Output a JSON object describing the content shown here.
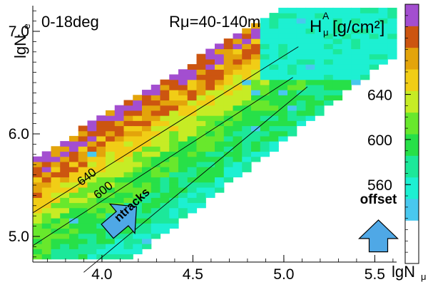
{
  "chart_data": {
    "type": "heatmap",
    "title_left": "0-18deg",
    "title_mid": "Rμ=40-140m",
    "colorbar_title": "H",
    "colorbar_title_sup": "A",
    "colorbar_title_sub": "μ",
    "colorbar_unit": "[g/cm²]",
    "xlabel": "lgN",
    "xlabel_sub": "μ",
    "ylabel": "lgN",
    "ylabel_sub": "e",
    "xlim": [
      3.62,
      5.62
    ],
    "ylim": [
      4.75,
      7.25
    ],
    "x_ticks": [
      {
        "value": 4.0,
        "label": "4.0"
      },
      {
        "value": 4.5,
        "label": "4.5"
      },
      {
        "value": 5.0,
        "label": "5.0"
      },
      {
        "value": 5.5,
        "label": "5.5"
      }
    ],
    "y_ticks": [
      {
        "value": 5.0,
        "label": "5.0"
      },
      {
        "value": 6.0,
        "label": "6.0"
      },
      {
        "value": 7.0,
        "label": "7.0"
      }
    ],
    "colorbar": {
      "range": [
        490,
        720
      ],
      "ticks": [
        {
          "value": 560,
          "label": "560"
        },
        {
          "value": 600,
          "label": "600"
        },
        {
          "value": 640,
          "label": "640"
        }
      ]
    },
    "contours": [
      {
        "label": "640",
        "points": [
          [
            3.62,
            5.23
          ],
          [
            5.08,
            6.85
          ]
        ]
      },
      {
        "label": "600",
        "points": [
          [
            3.62,
            4.91
          ],
          [
            5.05,
            6.55
          ]
        ]
      },
      {
        "label": "ntracks",
        "points": [
          [
            3.9,
            4.65
          ],
          [
            5.13,
            6.46
          ]
        ]
      }
    ],
    "annotations": [
      {
        "text": "640",
        "x": 3.93,
        "y": 5.55,
        "angle": -38
      },
      {
        "text": "600",
        "x": 4.02,
        "y": 5.42,
        "angle": -38
      },
      {
        "text": "ntracks",
        "x": 4.18,
        "y": 5.28,
        "angle": -43
      },
      {
        "text": "offset",
        "x": 5.52,
        "y": 5.32,
        "angle": 0
      }
    ],
    "arrows": [
      {
        "name": "ntracks-arrow",
        "x": 4.03,
        "y": 5.05,
        "dx": 0.16,
        "dy": 0.24
      },
      {
        "name": "offset-arrow",
        "x": 5.52,
        "y": 4.85,
        "dx": 0,
        "dy": 0.31
      }
    ]
  },
  "colors": {
    "scale": [
      "#ffffff",
      "#ffffff",
      "#49c8ef",
      "#1df0d2",
      "#1ce89a",
      "#27e048",
      "#68e82c",
      "#c6ec25",
      "#f1cd16",
      "#e3a40b",
      "#cc5510",
      "#a34ed0"
    ]
  }
}
